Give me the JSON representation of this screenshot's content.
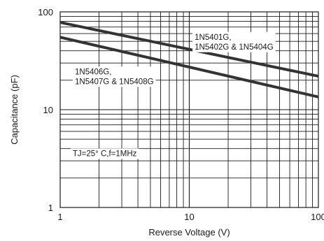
{
  "chart_data": {
    "type": "line",
    "xlabel": "Reverse Voltage (V)",
    "ylabel": "Capacitance (pF)",
    "xscale": "log",
    "yscale": "log",
    "xlim": [
      1,
      100
    ],
    "ylim": [
      1,
      100
    ],
    "grid": true,
    "x_ticks": [
      {
        "value": 1,
        "label": "1"
      },
      {
        "value": 10,
        "label": "10"
      },
      {
        "value": 100,
        "label": "100"
      }
    ],
    "y_ticks": [
      {
        "value": 1,
        "label": "1"
      },
      {
        "value": 10,
        "label": "10"
      },
      {
        "value": 100,
        "label": "100"
      }
    ],
    "series": [
      {
        "name": "1N5401G, 1N5402G & 1N5404G",
        "x": [
          1,
          100
        ],
        "y": [
          78,
          22
        ],
        "color": "#333333"
      },
      {
        "name": "1N5406G, 1N5407G & 1N5408G",
        "x": [
          1,
          100
        ],
        "y": [
          55,
          13.5
        ],
        "color": "#333333"
      }
    ],
    "annotations": [
      {
        "lines": [
          "1N5401G,",
          "1N5402G & 1N5404G"
        ],
        "x": 11,
        "y": 52
      },
      {
        "lines": [
          "1N5406G,",
          "1N5407G & 1N5408G"
        ],
        "x": 1.3,
        "y": 23
      },
      {
        "lines": [
          "TJ=25°  C,f=1MHz"
        ],
        "x": 1.25,
        "y": 3.35
      }
    ]
  }
}
